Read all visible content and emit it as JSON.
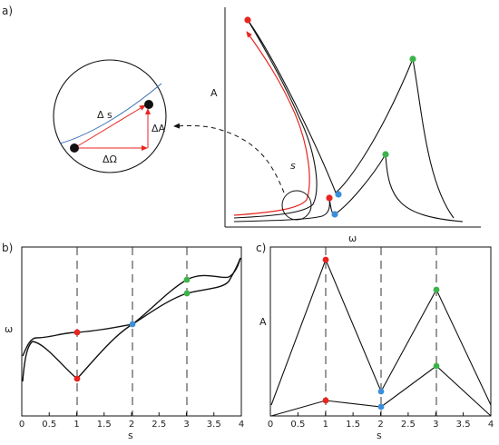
{
  "panel_a": {
    "label": "a)",
    "y_axis_label": "A",
    "x_axis_label": "ω",
    "path_label": "s",
    "inset": {
      "delta_s": "Δ s",
      "delta_a": "ΔA",
      "delta_omega": "ΔΩ"
    }
  },
  "panel_b": {
    "label": "b)",
    "y_axis_label": "ω",
    "x_axis_label": "s",
    "x_ticks": [
      "0",
      "0.5",
      "1",
      "1.5",
      "2",
      "2.5",
      "3",
      "3.5",
      "4"
    ]
  },
  "panel_c": {
    "label": "c)",
    "y_axis_label": "A",
    "x_axis_label": "s",
    "x_ticks": [
      "0",
      "0.5",
      "1",
      "1.5",
      "2",
      "2.5",
      "3",
      "3.5",
      "4"
    ]
  },
  "colors": {
    "curve": "#111111",
    "path": "#e8251f",
    "red_point": "#e8251f",
    "blue_point": "#3b8fd9",
    "green_point": "#3cb34a",
    "inset_curve": "#3a6fb5"
  }
}
